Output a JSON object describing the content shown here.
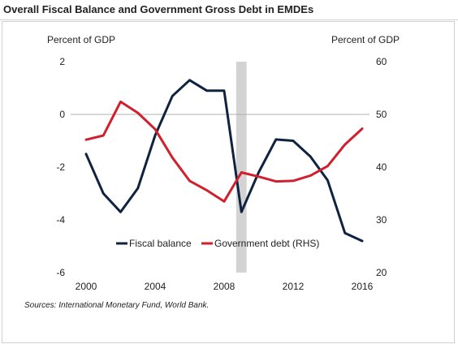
{
  "chart_data": {
    "type": "line",
    "title": "Overall Fiscal Balance and Government Gross Debt in EMDEs",
    "ylabel_left": "Percent of GDP",
    "ylabel_right": "Percent of GDP",
    "ylim_left": [
      -6,
      2
    ],
    "ylim_right": [
      20,
      60
    ],
    "yticks_left": [
      "2",
      "0",
      "-2",
      "-4",
      "-6"
    ],
    "yticks_right": [
      "60",
      "50",
      "40",
      "30",
      "20"
    ],
    "xlim": [
      2000,
      2016
    ],
    "xticks": [
      "2000",
      "2004",
      "2008",
      "2012",
      "2016"
    ],
    "shaded_period": [
      2008.7,
      2009.3
    ],
    "zero_line": true,
    "legend_position": "bottom-center",
    "series": [
      {
        "name": "Fiscal balance",
        "axis": "left",
        "color": "#0f2341",
        "x": [
          2000,
          2001,
          2002,
          2003,
          2004,
          2005,
          2006,
          2007,
          2008,
          2009,
          2010,
          2011,
          2012,
          2013,
          2014,
          2015,
          2016
        ],
        "values": [
          -1.5,
          -3.0,
          -3.7,
          -2.8,
          -0.8,
          0.7,
          1.3,
          0.9,
          0.9,
          -3.7,
          -2.2,
          -0.95,
          -1.0,
          -1.6,
          -2.5,
          -4.5,
          -4.8
        ]
      },
      {
        "name": "Government debt (RHS)",
        "axis": "right",
        "color": "#d0202e",
        "x": [
          2000,
          2001,
          2002,
          2003,
          2004,
          2005,
          2006,
          2007,
          2008,
          2009,
          2010,
          2011,
          2012,
          2013,
          2014,
          2015,
          2016
        ],
        "values": [
          45.2,
          46.0,
          52.4,
          50.3,
          47.2,
          41.8,
          37.4,
          35.6,
          33.5,
          39.0,
          38.2,
          37.3,
          37.4,
          38.4,
          40.2,
          44.3,
          47.3
        ]
      }
    ]
  },
  "footer": {
    "source": "Sources: International Monetary Fund, World Bank."
  }
}
